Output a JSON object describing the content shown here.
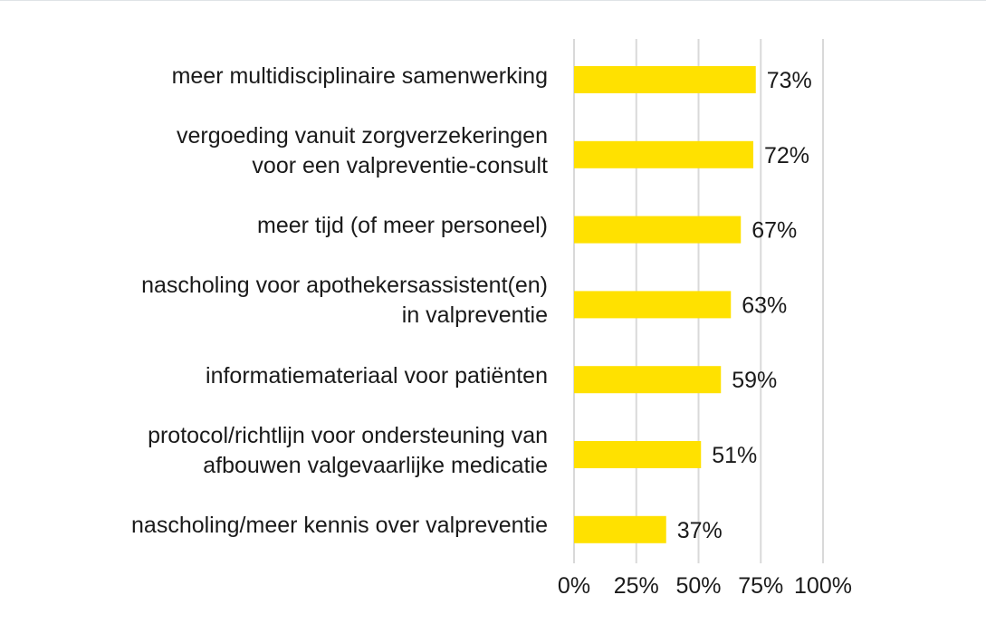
{
  "chart_data": {
    "type": "bar",
    "orientation": "horizontal",
    "categories": [
      [
        "meer multidisciplinaire samenwerking"
      ],
      [
        "vergoeding vanuit zorgverzekeringen",
        "voor een valpreventie-consult"
      ],
      [
        "meer tijd (of meer personeel)"
      ],
      [
        "nascholing voor apothekersassistent(en)",
        "in valpreventie"
      ],
      [
        "informatiemateriaal voor patiënten"
      ],
      [
        "protocol/richtlijn voor ondersteuning van",
        "afbouwen valgevaarlijke medicatie"
      ],
      [
        "nascholing/meer kennis over valpreventie"
      ]
    ],
    "values": [
      73,
      72,
      67,
      63,
      59,
      51,
      37
    ],
    "data_labels": [
      "73%",
      "72%",
      "67%",
      "63%",
      "59%",
      "51%",
      "37%"
    ],
    "xlim": [
      0,
      100
    ],
    "x_ticks": [
      0,
      25,
      50,
      75,
      100
    ],
    "x_tick_labels": [
      "0%",
      "25%",
      "50%",
      "75%",
      "100%"
    ],
    "bar_color": "#FFE100",
    "grid_color": "#d9d9d9",
    "grid": true,
    "legend": "none"
  }
}
